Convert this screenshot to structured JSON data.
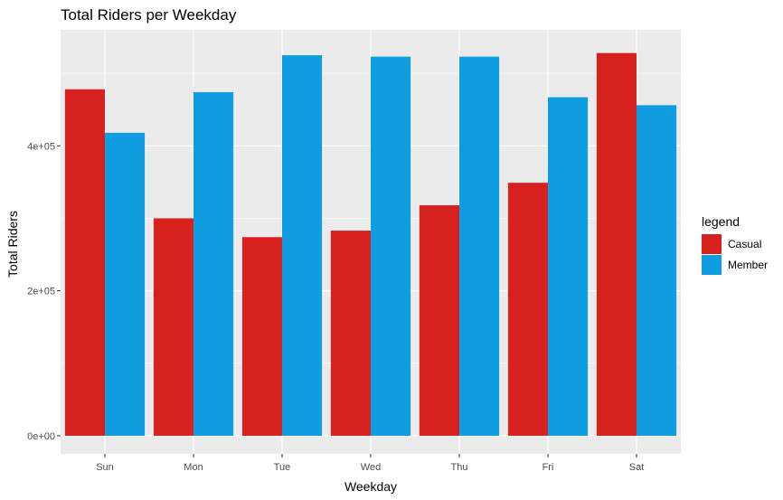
{
  "chart_data": {
    "type": "bar",
    "title": "Total Riders per Weekday",
    "xlabel": "Weekday",
    "ylabel": "Total Riders",
    "categories": [
      "Sun",
      "Mon",
      "Tue",
      "Wed",
      "Thu",
      "Fri",
      "Sat"
    ],
    "series": [
      {
        "name": "Casual",
        "color": "#d7211e",
        "values": [
          478000,
          300000,
          274000,
          283000,
          318000,
          349000,
          528000
        ]
      },
      {
        "name": "Member",
        "color": "#0f9ddf",
        "values": [
          418000,
          474000,
          525000,
          523000,
          523000,
          467000,
          456000
        ]
      }
    ],
    "yticks": [
      0,
      200000,
      400000
    ],
    "ytick_labels": [
      "0e+00",
      "2e+05",
      "4e+05"
    ],
    "ylim": [
      -25000,
      560000
    ],
    "legend_title": "legend",
    "legend_position": "right",
    "grid": true,
    "panel_background": "#ebebeb"
  }
}
